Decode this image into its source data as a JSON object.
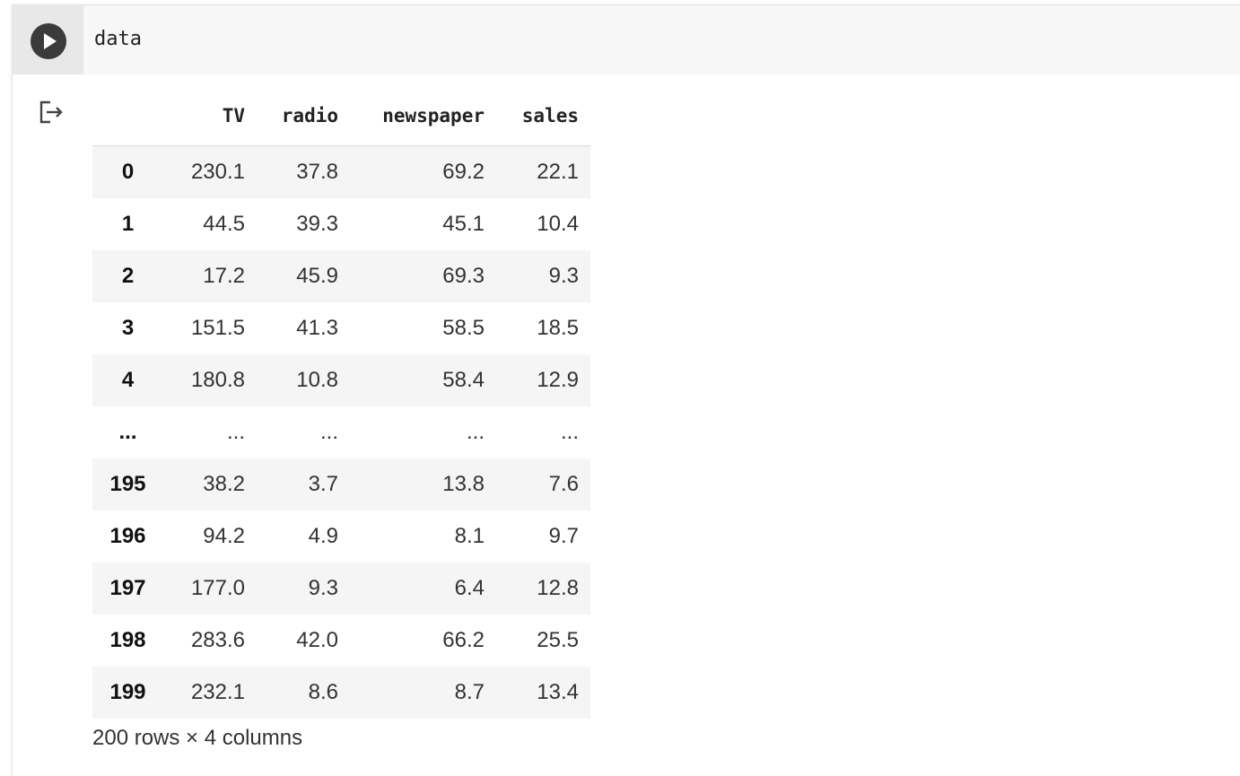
{
  "cell": {
    "code": "data"
  },
  "icons": {
    "run": "play-icon",
    "output": "output-exit-icon"
  },
  "table": {
    "columns": [
      "",
      "TV",
      "radio",
      "newspaper",
      "sales"
    ],
    "rows": [
      [
        "0",
        "230.1",
        "37.8",
        "69.2",
        "22.1"
      ],
      [
        "1",
        "44.5",
        "39.3",
        "45.1",
        "10.4"
      ],
      [
        "2",
        "17.2",
        "45.9",
        "69.3",
        "9.3"
      ],
      [
        "3",
        "151.5",
        "41.3",
        "58.5",
        "18.5"
      ],
      [
        "4",
        "180.8",
        "10.8",
        "58.4",
        "12.9"
      ],
      [
        "...",
        "...",
        "...",
        "...",
        "..."
      ],
      [
        "195",
        "38.2",
        "3.7",
        "13.8",
        "7.6"
      ],
      [
        "196",
        "94.2",
        "4.9",
        "8.1",
        "9.7"
      ],
      [
        "197",
        "177.0",
        "9.3",
        "6.4",
        "12.8"
      ],
      [
        "198",
        "283.6",
        "42.0",
        "66.2",
        "25.5"
      ],
      [
        "199",
        "232.1",
        "8.6",
        "8.7",
        "13.4"
      ]
    ]
  },
  "footer": "200 rows × 4 columns",
  "colors": {
    "gutter": "#e8e8e8",
    "input_bg": "#f7f7f7",
    "run_button": "#3b3b3b",
    "stripe": "#f5f5f5"
  }
}
